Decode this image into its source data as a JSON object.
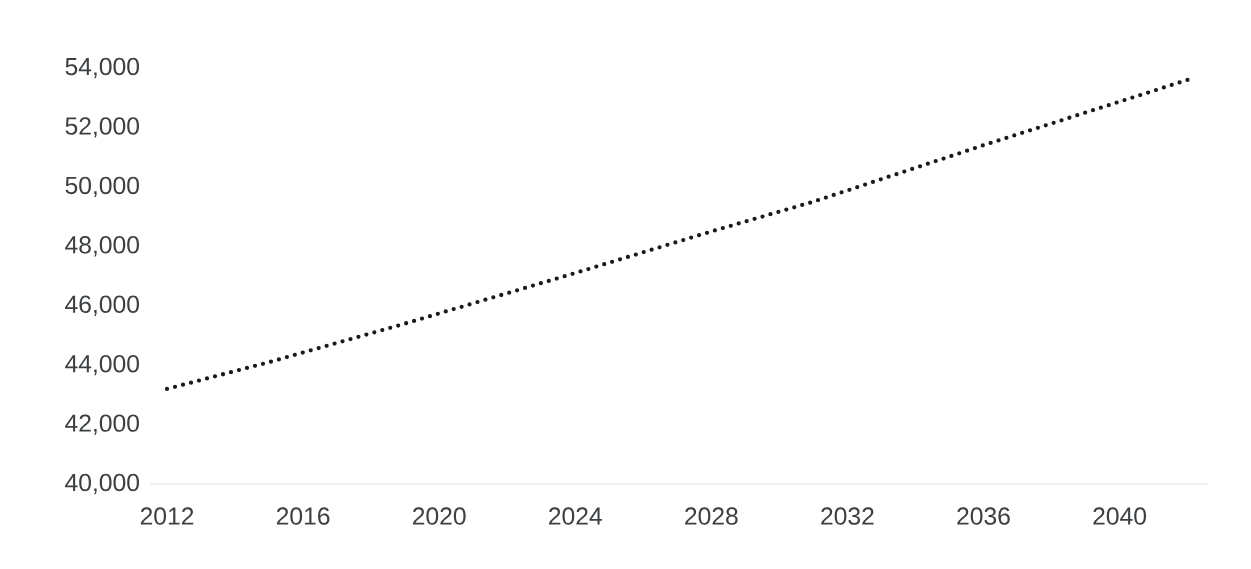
{
  "chart_data": {
    "type": "line",
    "series": [
      {
        "color": "#1a1a1a",
        "x": [
          2012,
          2015,
          2019,
          2024,
          2028,
          2031,
          2036,
          2042
        ],
        "values": [
          43200,
          44100,
          45400,
          47100,
          48500,
          49500,
          51400,
          53600
        ]
      }
    ],
    "xlim": [
      2011.5,
      2042.6
    ],
    "ylim": [
      40000,
      54000
    ],
    "xticks": [
      2012,
      2016,
      2020,
      2024,
      2028,
      2032,
      2036,
      2040
    ],
    "yticks": [
      {
        "value": 40000,
        "label": "40,000"
      },
      {
        "value": 42000,
        "label": "42,000"
      },
      {
        "value": 44000,
        "label": "44,000"
      },
      {
        "value": 46000,
        "label": "46,000"
      },
      {
        "value": 48000,
        "label": "48,000"
      },
      {
        "value": 50000,
        "label": "50,000"
      },
      {
        "value": 52000,
        "label": "52,000"
      },
      {
        "value": 54000,
        "label": "54,000"
      }
    ],
    "grid": false,
    "marker": "none",
    "line_style": "dotted"
  }
}
